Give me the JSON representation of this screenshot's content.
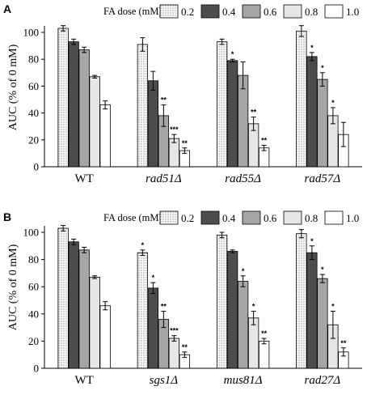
{
  "chart_data": [
    {
      "type": "bar",
      "panel_label": "A",
      "legend_title": "FA dose (mM):",
      "ylabel": "AUC (% of 0 mM)",
      "ylim": [
        0,
        100
      ],
      "yticks": [
        0,
        20,
        40,
        60,
        80,
        100
      ],
      "categories": [
        "WT",
        "rad51Δ",
        "rad55Δ",
        "rad57Δ"
      ],
      "categories_italic": [
        false,
        true,
        true,
        true
      ],
      "series": [
        {
          "name": "0.2",
          "fill": "dotted",
          "values": [
            103,
            91,
            93,
            101
          ],
          "errors": [
            2,
            5,
            2,
            4
          ],
          "sig": [
            "",
            "",
            "",
            ""
          ]
        },
        {
          "name": "0.4",
          "fill": "#4d4d4d",
          "values": [
            93,
            64,
            79,
            82
          ],
          "errors": [
            2,
            7,
            1,
            3
          ],
          "sig": [
            "",
            "",
            "*",
            "*"
          ]
        },
        {
          "name": "0.6",
          "fill": "#a6a6a6",
          "values": [
            87,
            38,
            68,
            65
          ],
          "errors": [
            2,
            8,
            10,
            5
          ],
          "sig": [
            "",
            "**",
            "",
            "*"
          ]
        },
        {
          "name": "0.8",
          "fill": "#e6e6e6",
          "values": [
            67,
            21,
            32,
            38
          ],
          "errors": [
            1,
            3,
            5,
            6
          ],
          "sig": [
            "",
            "***",
            "**",
            "*"
          ]
        },
        {
          "name": "1.0",
          "fill": "#ffffff",
          "values": [
            46,
            12,
            14,
            24
          ],
          "errors": [
            3,
            2,
            2,
            9
          ],
          "sig": [
            "",
            "**",
            "**",
            ""
          ]
        }
      ]
    },
    {
      "type": "bar",
      "panel_label": "B",
      "legend_title": "FA dose (mM):",
      "ylabel": "AUC (% of 0 mM)",
      "ylim": [
        0,
        100
      ],
      "yticks": [
        0,
        20,
        40,
        60,
        80,
        100
      ],
      "categories": [
        "WT",
        "sgs1Δ",
        "mus81Δ",
        "rad27Δ"
      ],
      "categories_italic": [
        false,
        true,
        true,
        true
      ],
      "series": [
        {
          "name": "0.2",
          "fill": "dotted",
          "values": [
            103,
            85,
            98,
            99
          ],
          "errors": [
            2,
            2,
            2,
            3
          ],
          "sig": [
            "",
            "*",
            "",
            ""
          ]
        },
        {
          "name": "0.4",
          "fill": "#4d4d4d",
          "values": [
            93,
            59,
            86,
            85
          ],
          "errors": [
            2,
            4,
            1,
            5
          ],
          "sig": [
            "",
            "*",
            "",
            "*"
          ]
        },
        {
          "name": "0.6",
          "fill": "#a6a6a6",
          "values": [
            87,
            36,
            64,
            66
          ],
          "errors": [
            2,
            6,
            4,
            3
          ],
          "sig": [
            "",
            "**",
            "*",
            "*"
          ]
        },
        {
          "name": "0.8",
          "fill": "#e6e6e6",
          "values": [
            67,
            22,
            37,
            32
          ],
          "errors": [
            1,
            2,
            5,
            10
          ],
          "sig": [
            "",
            "***",
            "*",
            "*"
          ]
        },
        {
          "name": "1.0",
          "fill": "#ffffff",
          "values": [
            46,
            10,
            20,
            12
          ],
          "errors": [
            3,
            2,
            2,
            3
          ],
          "sig": [
            "",
            "**",
            "**",
            "**"
          ]
        }
      ]
    }
  ]
}
